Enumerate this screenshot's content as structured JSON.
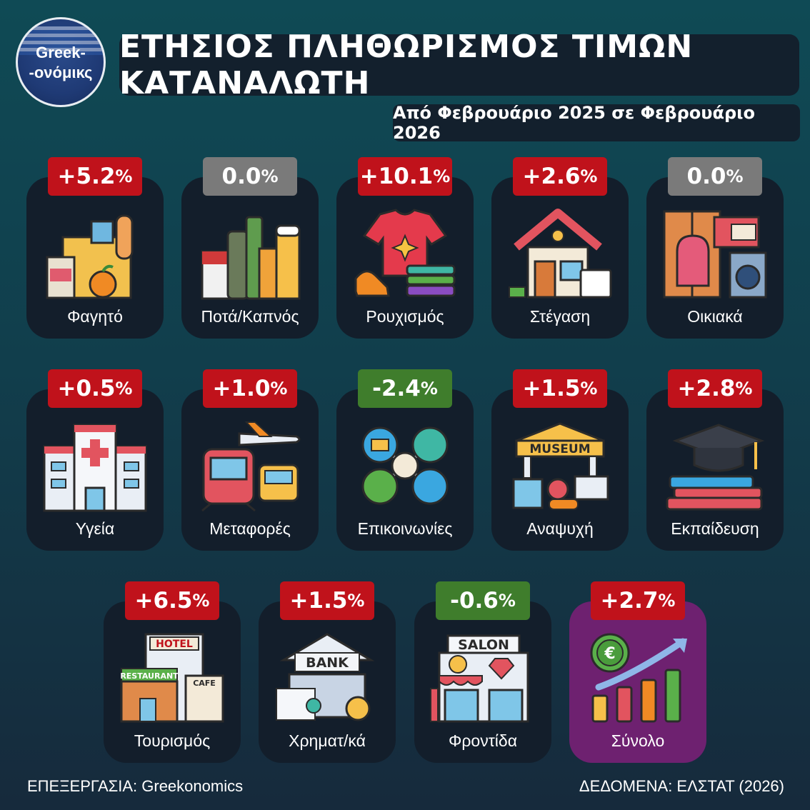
{
  "logo": {
    "line1": "Greek-",
    "line2": "-ονόμικς"
  },
  "title": "ΕΤΗΣΙΟΣ ΠΛΗΘΩΡΙΣΜΟΣ ΤΙΜΩΝ ΚΑΤΑΝΑΛΩΤΗ",
  "subtitle": "Από Φεβρουάριο 2025 σε Φεβρουάριο 2026",
  "colors": {
    "increase": "#c0121b",
    "zero": "#7a7a7a",
    "decrease": "#3f7d2c",
    "total_card": "#6e2170",
    "card": "#131e2b"
  },
  "categories": [
    {
      "label": "Φαγητό",
      "value": "+5.2",
      "unit": "%",
      "icon": "groceries-icon"
    },
    {
      "label": "Ποτά/Καπνός",
      "value": "0.0",
      "unit": "%",
      "icon": "drinks-tobacco-icon"
    },
    {
      "label": "Ρουχισμός",
      "value": "+10.1",
      "unit": "%",
      "icon": "clothing-icon"
    },
    {
      "label": "Στέγαση",
      "value": "+2.6",
      "unit": "%",
      "icon": "house-icon"
    },
    {
      "label": "Οικιακά",
      "value": "0.0",
      "unit": "%",
      "icon": "household-icon"
    },
    {
      "label": "Υγεία",
      "value": "+0.5",
      "unit": "%",
      "icon": "hospital-icon"
    },
    {
      "label": "Μεταφορές",
      "value": "+1.0",
      "unit": "%",
      "icon": "transport-icon"
    },
    {
      "label": "Επικοινωνίες",
      "value": "-2.4",
      "unit": "%",
      "icon": "communications-icon"
    },
    {
      "label": "Αναψυχή",
      "value": "+1.5",
      "unit": "%",
      "icon": "museum-icon"
    },
    {
      "label": "Εκπαίδευση",
      "value": "+2.8",
      "unit": "%",
      "icon": "education-icon"
    },
    {
      "label": "Τουρισμός",
      "value": "+6.5",
      "unit": "%",
      "icon": "hotel-icon"
    },
    {
      "label": "Χρηματ/κά",
      "value": "+1.5",
      "unit": "%",
      "icon": "bank-icon"
    },
    {
      "label": "Φροντίδα",
      "value": "-0.6",
      "unit": "%",
      "icon": "salon-icon"
    },
    {
      "label": "Σύνολο",
      "value": "+2.7",
      "unit": "%",
      "icon": "total-growth-icon"
    }
  ],
  "icon_text": {
    "museum": "MUSEUM",
    "hotel": "HOTEL",
    "restaurant": "RESTAURANT",
    "cafe": "CAFE",
    "bank": "BANK",
    "salon": "SALON"
  },
  "footer": {
    "left": "ΕΠΕΞΕΡΓΑΣΙΑ: Greekonomics",
    "right": "ΔΕΔΟΜΕΝΑ: ΕΛΣΤΑΤ (2026)"
  }
}
